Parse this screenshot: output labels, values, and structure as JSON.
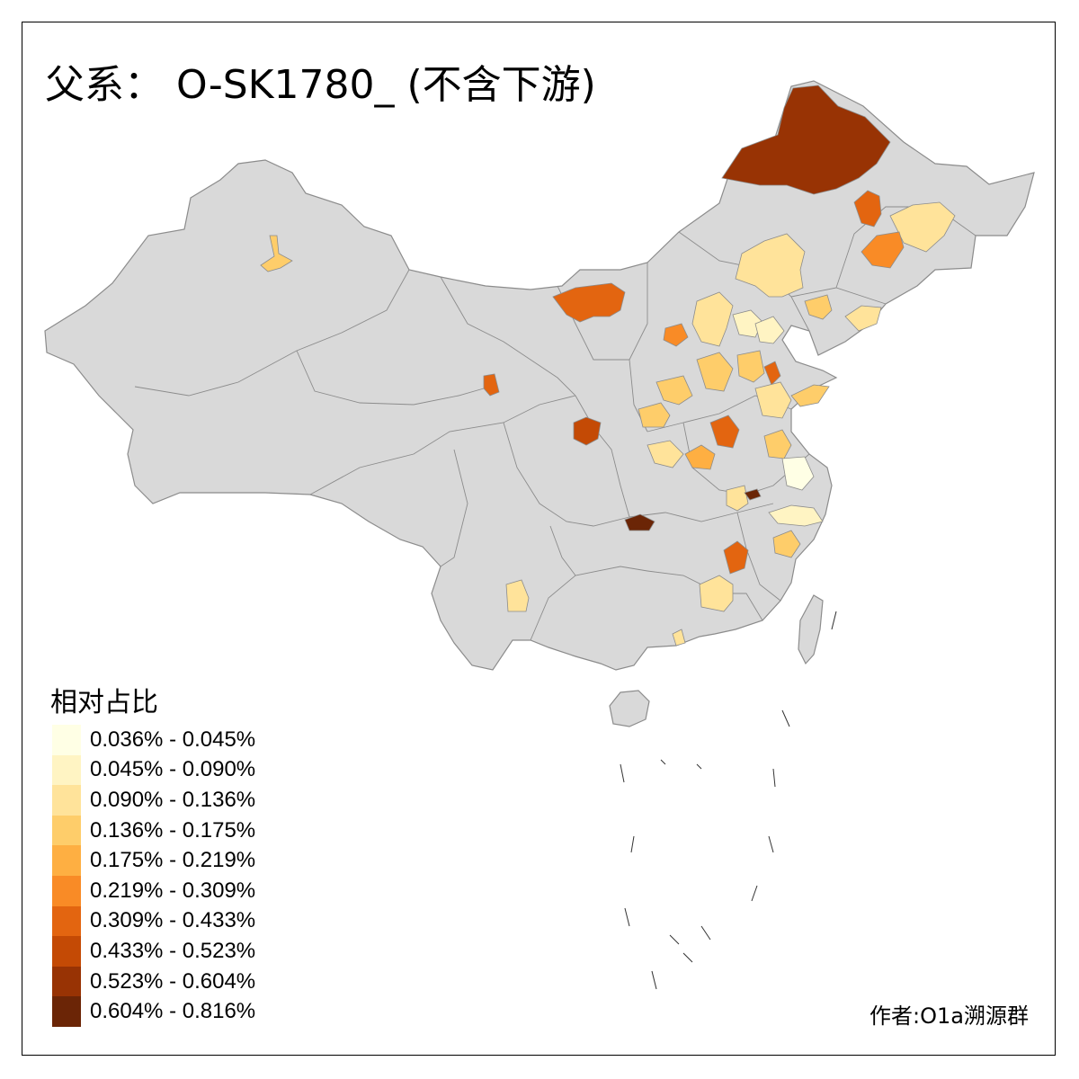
{
  "title": "父系： O-SK1780_ (不含下游)",
  "legend": {
    "title": "相对占比",
    "items": [
      {
        "label": "0.036% - 0.045%",
        "color": "#FFFFE5"
      },
      {
        "label": "0.045% - 0.090%",
        "color": "#FFF4C3"
      },
      {
        "label": "0.090% - 0.136%",
        "color": "#FFE39A"
      },
      {
        "label": "0.136% - 0.175%",
        "color": "#FECD6A"
      },
      {
        "label": "0.175% - 0.219%",
        "color": "#FEAF42"
      },
      {
        "label": "0.219% - 0.309%",
        "color": "#F98B26"
      },
      {
        "label": "0.309% - 0.433%",
        "color": "#E36510"
      },
      {
        "label": "0.433% - 0.523%",
        "color": "#C44A05"
      },
      {
        "label": "0.523% - 0.604%",
        "color": "#983304"
      },
      {
        "label": "0.604% - 0.816%",
        "color": "#6B2506"
      }
    ]
  },
  "author": "作者:O1a溯源群",
  "colors": {
    "land": "#D9D9D9",
    "border": "#8C8C8C",
    "no_data": "#D9D9D9"
  },
  "regions": [
    {
      "name": "hulunbuir",
      "bin": 8
    },
    {
      "name": "xilingol-west",
      "bin": 6
    },
    {
      "name": "xilingol",
      "bin": 2
    },
    {
      "name": "qiqihar",
      "bin": 6
    },
    {
      "name": "harbin",
      "bin": 2
    },
    {
      "name": "changchun",
      "bin": 5
    },
    {
      "name": "shenyang",
      "bin": 2
    },
    {
      "name": "dalian",
      "bin": 3
    },
    {
      "name": "tianjin",
      "bin": 1
    },
    {
      "name": "hebei-zhangjiakou",
      "bin": 1
    },
    {
      "name": "shanxi-north",
      "bin": 2
    },
    {
      "name": "shanxi-mid",
      "bin": 3
    },
    {
      "name": "hebei-south",
      "bin": 3
    },
    {
      "name": "shandong-north",
      "bin": 6
    },
    {
      "name": "shandong-mid",
      "bin": 2
    },
    {
      "name": "qingdao",
      "bin": 3
    },
    {
      "name": "henan-north",
      "bin": 3
    },
    {
      "name": "henan-mid",
      "bin": 6
    },
    {
      "name": "henan-south",
      "bin": 4
    },
    {
      "name": "jiangsu-north",
      "bin": 3
    },
    {
      "name": "jiangsu-mid",
      "bin": 0
    },
    {
      "name": "anhui-north",
      "bin": 2
    },
    {
      "name": "anhui-dark",
      "bin": 9
    },
    {
      "name": "zhejiang-north",
      "bin": 1
    },
    {
      "name": "jiangxi-mid",
      "bin": 6
    },
    {
      "name": "jiangxi-south",
      "bin": 2
    },
    {
      "name": "fujian-north",
      "bin": 3
    },
    {
      "name": "chongqing",
      "bin": 9
    },
    {
      "name": "shaanxi-yanan",
      "bin": 7
    },
    {
      "name": "qinghai-xining",
      "bin": 6
    },
    {
      "name": "yunnan",
      "bin": 2
    },
    {
      "name": "guangdong",
      "bin": 2
    },
    {
      "name": "xinjiang-urumqi",
      "bin": 3
    },
    {
      "name": "shanxi-west",
      "bin": 5
    },
    {
      "name": "shandong-linyi",
      "bin": 3
    },
    {
      "name": "henan-zhoukou",
      "bin": 2
    }
  ]
}
